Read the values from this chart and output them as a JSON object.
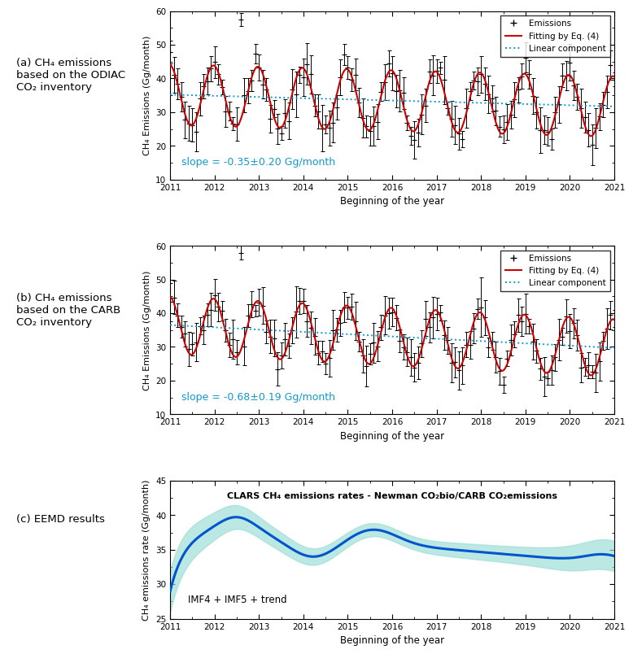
{
  "panel_a_label": "(a) CH₄ emissions\nbased on the ODIAC\nCO₂ inventory",
  "panel_b_label": "(b) CH₄ emissions\nbased on the CARB\nCO₂ inventory",
  "panel_c_label": "(c) EEMD results",
  "ylabel_ab": "CH₄ Emissions (Gg/month)",
  "ylabel_c": "CH₄ emissions rate (Gg/month)",
  "xlabel": "Beginning of the year",
  "slope_a": "slope = -0.35±0.20 Gg/month",
  "slope_b": "slope = -0.68±0.19 Gg/month",
  "panel_c_title": "CLARS CH₄ emissions rates - Newman CO₂bio/CARB CO₂emissions",
  "panel_c_annotation": "IMF4 + IMF5 + trend",
  "legend_emissions": "Emissions",
  "legend_fitting": "Fitting by Eq. (4)",
  "legend_linear": "Linear component",
  "xlim": [
    2011,
    2021
  ],
  "ylim_ab": [
    10,
    60
  ],
  "ylim_c": [
    25,
    45
  ],
  "yticks_ab": [
    10,
    20,
    30,
    40,
    50,
    60
  ],
  "yticks_c": [
    25,
    30,
    35,
    40,
    45
  ],
  "xticks": [
    2011,
    2012,
    2013,
    2014,
    2015,
    2016,
    2017,
    2018,
    2019,
    2020,
    2021
  ],
  "red_color": "#cc0000",
  "blue_color": "#0055cc",
  "dotted_blue": "#1199cc",
  "fill_color": "#99ddd4",
  "slope_color": "#1199cc"
}
